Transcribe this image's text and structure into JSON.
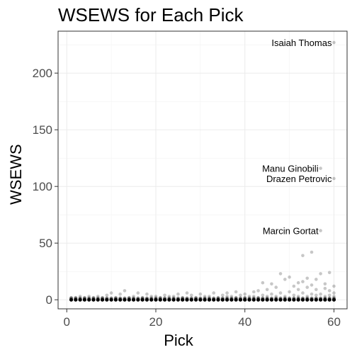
{
  "chart_data": {
    "type": "scatter",
    "title": "WSEWS for Each Pick",
    "xlabel": "Pick",
    "ylabel": "WSEWS",
    "xlim": [
      -1.95,
      62.95
    ],
    "ylim": [
      -8,
      237
    ],
    "x_ticks": [
      0,
      20,
      40,
      60
    ],
    "y_ticks": [
      0,
      50,
      100,
      150,
      200
    ],
    "grid": true,
    "point_color": "#000000",
    "point_alpha": 0.22,
    "annotations": [
      {
        "label": "Isaiah Thomas",
        "x": 60,
        "y": 227
      },
      {
        "label": "Manu Ginobili",
        "x": 57,
        "y": 116
      },
      {
        "label": "Drazen Petrovic",
        "x": 60,
        "y": 107
      },
      {
        "label": "Marcin Gortat",
        "x": 57,
        "y": 61
      }
    ],
    "points": [
      [
        60,
        227
      ],
      [
        57,
        116
      ],
      [
        60,
        107
      ],
      [
        57,
        61
      ],
      [
        55,
        42
      ],
      [
        53,
        39
      ],
      [
        59,
        24
      ],
      [
        57,
        23
      ],
      [
        54,
        19
      ],
      [
        56,
        18
      ],
      [
        53,
        16
      ],
      [
        52,
        15
      ],
      [
        58,
        14
      ],
      [
        60,
        12
      ],
      [
        50,
        20
      ],
      [
        48,
        23
      ],
      [
        49,
        18
      ],
      [
        44,
        15
      ],
      [
        46,
        14
      ],
      [
        51,
        12
      ],
      [
        47,
        11
      ],
      [
        45,
        9
      ],
      [
        43,
        8
      ],
      [
        42,
        7
      ],
      [
        55,
        13
      ],
      [
        56,
        9
      ],
      [
        59,
        8
      ],
      [
        60,
        6
      ],
      [
        58,
        10
      ],
      [
        54,
        11
      ],
      [
        52,
        9
      ],
      [
        50,
        7
      ],
      [
        38,
        7
      ],
      [
        36,
        6
      ],
      [
        40,
        5
      ],
      [
        33,
        6
      ],
      [
        30,
        5
      ],
      [
        27,
        6
      ],
      [
        25,
        5
      ],
      [
        22,
        4
      ],
      [
        18,
        5
      ],
      [
        16,
        6
      ],
      [
        13,
        8
      ],
      [
        12,
        5
      ],
      [
        10,
        6
      ],
      [
        9,
        4
      ],
      [
        7,
        3
      ],
      [
        5,
        3
      ],
      [
        3,
        3
      ],
      [
        48,
        6
      ],
      [
        46,
        5
      ],
      [
        44,
        4
      ],
      [
        41,
        3
      ],
      [
        39,
        4
      ],
      [
        37,
        3
      ],
      [
        35,
        4
      ],
      [
        31,
        3
      ],
      [
        28,
        4
      ],
      [
        24,
        3
      ],
      [
        20,
        3
      ],
      [
        15,
        3
      ],
      [
        53,
        6
      ],
      [
        57,
        5
      ],
      [
        59,
        4
      ],
      [
        51,
        4
      ],
      [
        49,
        3
      ],
      [
        55,
        5
      ],
      [
        47,
        3
      ],
      [
        43,
        2
      ],
      [
        34,
        2
      ],
      [
        29,
        2
      ],
      [
        26,
        2
      ],
      [
        21,
        2
      ],
      [
        17,
        2
      ],
      [
        14,
        2
      ],
      [
        11,
        2
      ],
      [
        8,
        2
      ],
      [
        6,
        2
      ],
      [
        4,
        2
      ],
      [
        2,
        2
      ],
      [
        1,
        2
      ],
      [
        32,
        3
      ],
      [
        19,
        3
      ],
      [
        23,
        3
      ],
      [
        56,
        4
      ],
      [
        58,
        3
      ],
      [
        54,
        3
      ],
      [
        52,
        3
      ],
      [
        60,
        3
      ],
      [
        45,
        3
      ],
      [
        42,
        3
      ],
      [
        40,
        2
      ],
      [
        38,
        2
      ],
      [
        36,
        3
      ]
    ]
  }
}
